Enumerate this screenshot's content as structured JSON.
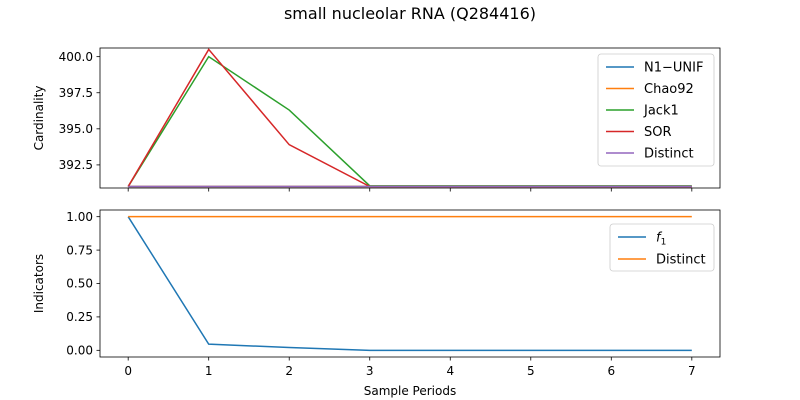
{
  "title": "small nucleolar RNA (Q284416)",
  "chart_data": [
    {
      "type": "line",
      "ylabel": "Cardinality",
      "xlabel": "",
      "x": [
        0,
        1,
        2,
        3,
        4,
        5,
        6,
        7
      ],
      "xlim": [
        -0.35,
        7.35
      ],
      "ylim": [
        390.9,
        400.6
      ],
      "yticks": [
        392.5,
        395.0,
        397.5,
        400.0
      ],
      "ytick_labels": [
        "392.5",
        "395.0",
        "397.5",
        "400.0"
      ],
      "show_xtick_labels": false,
      "legend_position": "top-right",
      "series": [
        {
          "name": "N1−UNIF",
          "color": "#1f77b4",
          "values": [
            391,
            391,
            391,
            391,
            391,
            391,
            391,
            391
          ]
        },
        {
          "name": "Chao92",
          "color": "#ff7f0e",
          "values": [
            391,
            391,
            391,
            391,
            391,
            391,
            391,
            391
          ]
        },
        {
          "name": "Jack1",
          "color": "#2ca02c",
          "values": [
            391,
            400,
            396.3,
            391.05,
            391.05,
            391.05,
            391.05,
            391.05
          ]
        },
        {
          "name": "SOR",
          "color": "#d62728",
          "values": [
            391,
            400.5,
            393.9,
            391,
            391,
            391,
            391,
            391
          ]
        },
        {
          "name": "Distinct",
          "color": "#9467bd",
          "values": [
            391,
            391,
            391,
            391,
            391,
            391,
            391,
            391
          ]
        }
      ]
    },
    {
      "type": "line",
      "ylabel": "Indicators",
      "xlabel": "Sample Periods",
      "x": [
        0,
        1,
        2,
        3,
        4,
        5,
        6,
        7
      ],
      "xlim": [
        -0.35,
        7.35
      ],
      "ylim": [
        -0.05,
        1.05
      ],
      "yticks": [
        0.0,
        0.25,
        0.5,
        0.75,
        1.0
      ],
      "ytick_labels": [
        "0.00",
        "0.25",
        "0.50",
        "0.75",
        "1.00"
      ],
      "xtick_labels": [
        "0",
        "1",
        "2",
        "3",
        "4",
        "5",
        "6",
        "7"
      ],
      "show_xtick_labels": true,
      "legend_position": "top-right",
      "series": [
        {
          "name": "f",
          "subscript": "1",
          "color": "#1f77b4",
          "values": [
            1.0,
            0.046,
            0.021,
            0.0,
            0.0,
            0.0,
            0.0,
            0.0
          ]
        },
        {
          "name": "Distinct",
          "color": "#ff7f0e",
          "values": [
            1.0,
            1.0,
            1.0,
            1.0,
            1.0,
            1.0,
            1.0,
            1.0
          ]
        }
      ]
    }
  ]
}
